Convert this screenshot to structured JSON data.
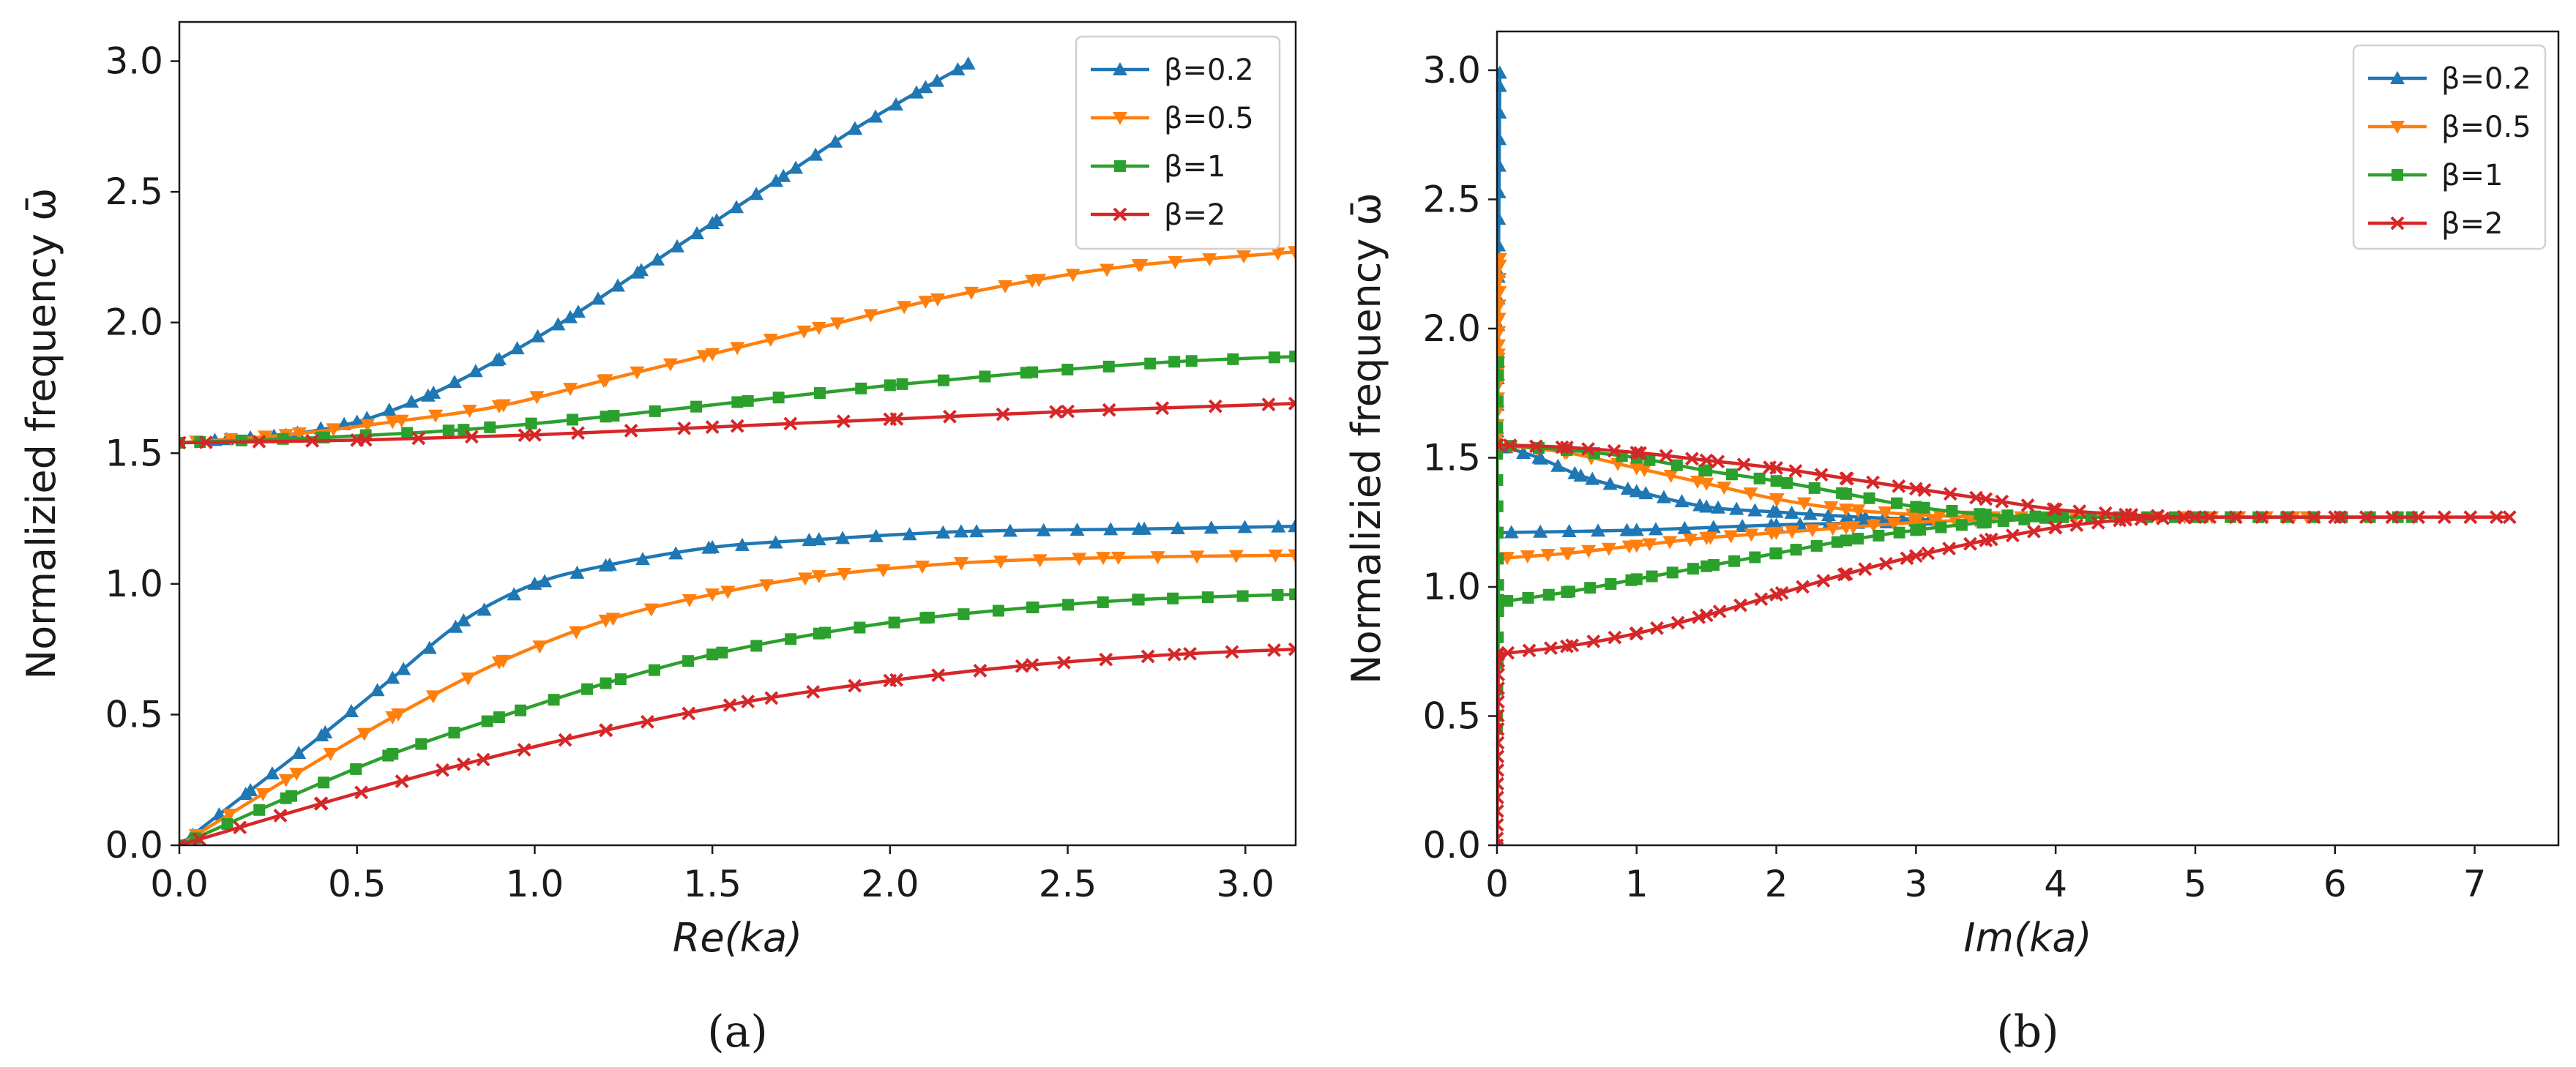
{
  "chart_data": [
    {
      "type": "line",
      "panel": "(a)",
      "caption": "(a)",
      "xlabel": "Re(ka)",
      "ylabel": "Normalizied frequency ω̄",
      "xlim": [
        0,
        3.14159
      ],
      "ylim": [
        0,
        3.15
      ],
      "xticks": [
        "0.0",
        "0.5",
        "1.0",
        "1.5",
        "2.0",
        "2.5",
        "3.0"
      ],
      "yticks": [
        "0.0",
        "0.5",
        "1.0",
        "1.5",
        "2.0",
        "2.5",
        "3.0"
      ],
      "legend_position": "top-right",
      "series": [
        {
          "name": "β=0.2",
          "color": "#1f77b4",
          "marker": "triangle-up",
          "branch": "lower",
          "points": [
            [
              0,
              0
            ],
            [
              0.2,
              0.21
            ],
            [
              0.4,
              0.42
            ],
            [
              0.6,
              0.64
            ],
            [
              0.8,
              0.86
            ],
            [
              1.0,
              1.0
            ],
            [
              1.2,
              1.07
            ],
            [
              1.5,
              1.14
            ],
            [
              1.8,
              1.17
            ],
            [
              2.2,
              1.2
            ],
            [
              2.7,
              1.21
            ],
            [
              3.14,
              1.22
            ]
          ]
        },
        {
          "name": "β=0.2",
          "color": "#1f77b4",
          "marker": "triangle-up",
          "branch": "upper",
          "points": [
            [
              0.1,
              1.55
            ],
            [
              0.3,
              1.57
            ],
            [
              0.5,
              1.62
            ],
            [
              0.7,
              1.72
            ],
            [
              0.9,
              1.86
            ],
            [
              1.1,
              2.02
            ],
            [
              1.3,
              2.2
            ],
            [
              1.5,
              2.38
            ],
            [
              1.7,
              2.56
            ],
            [
              1.9,
              2.74
            ],
            [
              2.1,
              2.9
            ],
            [
              2.22,
              2.99
            ]
          ]
        },
        {
          "name": "β=0.5",
          "color": "#ff7f0e",
          "marker": "triangle-down",
          "branch": "lower",
          "points": [
            [
              0,
              0
            ],
            [
              0.3,
              0.25
            ],
            [
              0.6,
              0.49
            ],
            [
              0.9,
              0.7
            ],
            [
              1.2,
              0.86
            ],
            [
              1.5,
              0.96
            ],
            [
              1.8,
              1.03
            ],
            [
              2.2,
              1.08
            ],
            [
              2.6,
              1.1
            ],
            [
              3.14,
              1.11
            ]
          ]
        },
        {
          "name": "β=0.5",
          "color": "#ff7f0e",
          "marker": "triangle-down",
          "branch": "upper",
          "points": [
            [
              0,
              1.54
            ],
            [
              0.3,
              1.57
            ],
            [
              0.6,
              1.62
            ],
            [
              0.9,
              1.68
            ],
            [
              1.2,
              1.78
            ],
            [
              1.5,
              1.88
            ],
            [
              1.8,
              1.98
            ],
            [
              2.1,
              2.08
            ],
            [
              2.4,
              2.16
            ],
            [
              2.7,
              2.22
            ],
            [
              3.14,
              2.27
            ]
          ]
        },
        {
          "name": "β=1",
          "color": "#2ca02c",
          "marker": "square",
          "branch": "lower",
          "points": [
            [
              0,
              0
            ],
            [
              0.3,
              0.18
            ],
            [
              0.6,
              0.35
            ],
            [
              0.9,
              0.49
            ],
            [
              1.2,
              0.62
            ],
            [
              1.5,
              0.73
            ],
            [
              1.8,
              0.81
            ],
            [
              2.1,
              0.87
            ],
            [
              2.4,
              0.91
            ],
            [
              2.7,
              0.94
            ],
            [
              3.14,
              0.96
            ]
          ]
        },
        {
          "name": "β=1",
          "color": "#2ca02c",
          "marker": "square",
          "branch": "upper",
          "points": [
            [
              0,
              1.54
            ],
            [
              0.4,
              1.56
            ],
            [
              0.8,
              1.59
            ],
            [
              1.2,
              1.64
            ],
            [
              1.6,
              1.7
            ],
            [
              2.0,
              1.76
            ],
            [
              2.4,
              1.81
            ],
            [
              2.8,
              1.85
            ],
            [
              3.14,
              1.87
            ]
          ]
        },
        {
          "name": "β=2",
          "color": "#d62728",
          "marker": "x",
          "branch": "lower",
          "points": [
            [
              0,
              0
            ],
            [
              0.4,
              0.16
            ],
            [
              0.8,
              0.31
            ],
            [
              1.2,
              0.44
            ],
            [
              1.6,
              0.55
            ],
            [
              2.0,
              0.63
            ],
            [
              2.4,
              0.69
            ],
            [
              2.8,
              0.73
            ],
            [
              3.14,
              0.75
            ]
          ]
        },
        {
          "name": "β=2",
          "color": "#d62728",
          "marker": "x",
          "branch": "upper",
          "points": [
            [
              0,
              1.54
            ],
            [
              0.5,
              1.55
            ],
            [
              1.0,
              1.57
            ],
            [
              1.5,
              1.6
            ],
            [
              2.0,
              1.63
            ],
            [
              2.5,
              1.66
            ],
            [
              3.14,
              1.69
            ]
          ]
        }
      ]
    },
    {
      "type": "line",
      "panel": "(b)",
      "caption": "(b)",
      "xlabel": "Im(ka)",
      "ylabel": "Normalizied frequency ω̄",
      "xlim": [
        0,
        7.6
      ],
      "ylim": [
        0,
        3.15
      ],
      "xticks": [
        "0",
        "1",
        "2",
        "3",
        "4",
        "5",
        "6",
        "7"
      ],
      "yticks": [
        "0.0",
        "0.5",
        "1.0",
        "1.5",
        "2.0",
        "2.5",
        "3.0"
      ],
      "legend_position": "top-right",
      "series": [
        {
          "name": "β=0.2",
          "color": "#1f77b4",
          "marker": "triangle-up",
          "branch": "axis",
          "points": [
            [
              0,
              1.55
            ],
            [
              0.01,
              2.2
            ],
            [
              0.02,
              2.99
            ]
          ]
        },
        {
          "name": "β=0.2",
          "color": "#1f77b4",
          "marker": "triangle-up",
          "branch": "upper",
          "points": [
            [
              0,
              1.55
            ],
            [
              0.3,
              1.5
            ],
            [
              0.6,
              1.43
            ],
            [
              1.0,
              1.37
            ],
            [
              1.5,
              1.31
            ],
            [
              2.0,
              1.29
            ],
            [
              2.6,
              1.27
            ],
            [
              3.1,
              1.26
            ]
          ]
        },
        {
          "name": "β=0.2",
          "color": "#1f77b4",
          "marker": "triangle-up",
          "branch": "lower",
          "points": [
            [
              0,
              1.21
            ],
            [
              1.0,
              1.22
            ],
            [
              2.0,
              1.24
            ],
            [
              2.8,
              1.25
            ],
            [
              3.1,
              1.26
            ]
          ]
        },
        {
          "name": "β=0.5",
          "color": "#ff7f0e",
          "marker": "triangle-down",
          "branch": "axis",
          "points": [
            [
              0,
              1.55
            ],
            [
              0.01,
              1.9
            ],
            [
              0.02,
              2.27
            ]
          ]
        },
        {
          "name": "β=0.5",
          "color": "#ff7f0e",
          "marker": "triangle-down",
          "branch": "upper",
          "points": [
            [
              0,
              1.55
            ],
            [
              0.5,
              1.52
            ],
            [
              1.0,
              1.46
            ],
            [
              1.5,
              1.4
            ],
            [
              2.0,
              1.34
            ],
            [
              2.5,
              1.3
            ],
            [
              3.0,
              1.28
            ],
            [
              3.5,
              1.27
            ],
            [
              4.5,
              1.27
            ],
            [
              5.8,
              1.27
            ]
          ]
        },
        {
          "name": "β=0.5",
          "color": "#ff7f0e",
          "marker": "triangle-down",
          "branch": "lower",
          "points": [
            [
              0,
              1.11
            ],
            [
              0.5,
              1.13
            ],
            [
              1.0,
              1.16
            ],
            [
              1.5,
              1.19
            ],
            [
              2.0,
              1.21
            ],
            [
              2.5,
              1.23
            ],
            [
              3.0,
              1.25
            ],
            [
              3.5,
              1.26
            ]
          ]
        },
        {
          "name": "β=1",
          "color": "#2ca02c",
          "marker": "square",
          "branch": "axis",
          "points": [
            [
              0,
              0.45
            ],
            [
              0.01,
              0.95
            ],
            [
              0.0,
              1.55
            ],
            [
              0.01,
              1.87
            ]
          ]
        },
        {
          "name": "β=1",
          "color": "#2ca02c",
          "marker": "square",
          "branch": "upper",
          "points": [
            [
              0,
              1.55
            ],
            [
              0.5,
              1.53
            ],
            [
              1.0,
              1.5
            ],
            [
              1.5,
              1.45
            ],
            [
              2.0,
              1.41
            ],
            [
              2.5,
              1.36
            ],
            [
              3.0,
              1.31
            ],
            [
              3.5,
              1.28
            ],
            [
              4.0,
              1.27
            ],
            [
              5.0,
              1.27
            ],
            [
              6.55,
              1.27
            ]
          ]
        },
        {
          "name": "β=1",
          "color": "#2ca02c",
          "marker": "square",
          "branch": "lower",
          "points": [
            [
              0,
              0.94
            ],
            [
              0.5,
              0.98
            ],
            [
              1.0,
              1.03
            ],
            [
              1.5,
              1.08
            ],
            [
              2.0,
              1.13
            ],
            [
              2.5,
              1.18
            ],
            [
              3.0,
              1.22
            ],
            [
              3.5,
              1.25
            ],
            [
              4.0,
              1.27
            ]
          ]
        },
        {
          "name": "β=2",
          "color": "#d62728",
          "marker": "x",
          "branch": "axis",
          "points": [
            [
              0,
              0.0
            ],
            [
              0.01,
              0.74
            ]
          ]
        },
        {
          "name": "β=2",
          "color": "#d62728",
          "marker": "x",
          "branch": "upper",
          "points": [
            [
              0,
              1.55
            ],
            [
              0.5,
              1.54
            ],
            [
              1.0,
              1.52
            ],
            [
              1.5,
              1.49
            ],
            [
              2.0,
              1.46
            ],
            [
              2.5,
              1.42
            ],
            [
              3.0,
              1.38
            ],
            [
              3.5,
              1.34
            ],
            [
              4.0,
              1.3
            ],
            [
              4.5,
              1.28
            ],
            [
              5.0,
              1.27
            ],
            [
              6.0,
              1.27
            ],
            [
              7.25,
              1.27
            ]
          ]
        },
        {
          "name": "β=2",
          "color": "#d62728",
          "marker": "x",
          "branch": "lower",
          "points": [
            [
              0,
              0.74
            ],
            [
              0.5,
              0.77
            ],
            [
              1.0,
              0.82
            ],
            [
              1.5,
              0.89
            ],
            [
              2.0,
              0.97
            ],
            [
              2.5,
              1.05
            ],
            [
              3.0,
              1.12
            ],
            [
              3.5,
              1.18
            ],
            [
              4.0,
              1.23
            ],
            [
              4.5,
              1.26
            ],
            [
              5.0,
              1.27
            ]
          ]
        }
      ]
    }
  ]
}
